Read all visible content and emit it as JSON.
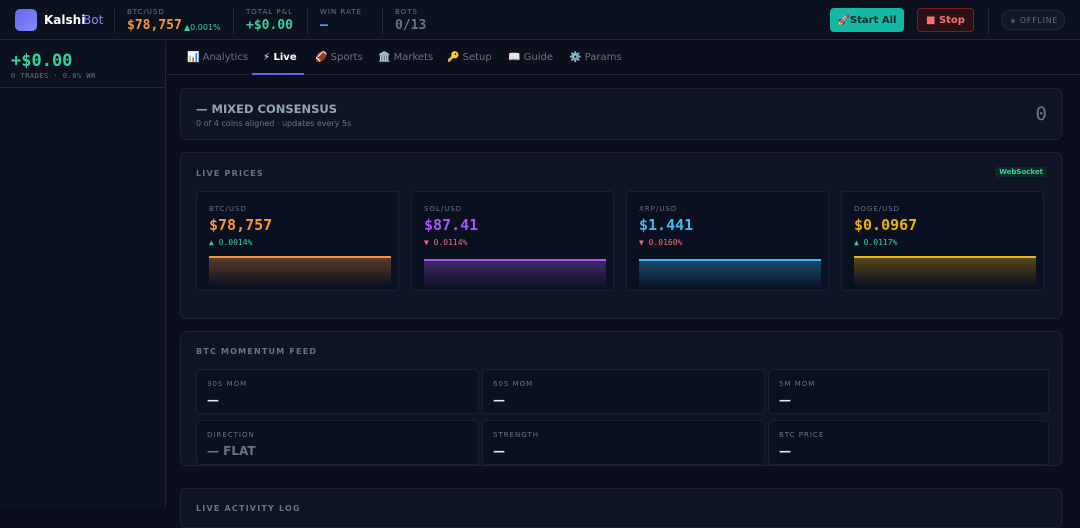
{
  "header": {
    "brand": "Kalshi",
    "brand_suffix": "Bot",
    "stats": [
      {
        "label": "BTC/USD",
        "value": "$78,757",
        "change": "▲0.001%"
      },
      {
        "label": "TOTAL P&L",
        "value": "+$0.00"
      },
      {
        "label": "WIN RATE",
        "value": "—"
      },
      {
        "label": "BOTS",
        "value": "0/13"
      }
    ],
    "start_button": "🚀Start All",
    "stop_button": "■ Stop",
    "status": "OFFLINE"
  },
  "sidebar": {
    "pnl": "+$0.00",
    "summary": "0 TRADES · 0.0% WR"
  },
  "tabs": [
    "📊 Analytics",
    "⚡ Live",
    "🏈 Sports",
    "🏛️ Markets",
    "🔑 Setup",
    "📖 Guide",
    "⚙️ Params"
  ],
  "consensus": {
    "title": "— MIXED CONSENSUS",
    "subtitle": "0 of 4 coins aligned · updates every 5s",
    "score": "0"
  },
  "live_prices": {
    "title": "LIVE PRICES",
    "badge": "WebSocket",
    "coins": [
      {
        "pair": "BTC/USD",
        "price": "$78,757",
        "change": "▲ 0.0014%"
      },
      {
        "pair": "SOL/USD",
        "price": "$87.41",
        "change": "▼ 0.0114%"
      },
      {
        "pair": "XRP/USD",
        "price": "$1.441",
        "change": "▼ 0.0160%"
      },
      {
        "pair": "DOGE/USD",
        "price": "$0.0967",
        "change": "▲ 0.0117%"
      }
    ]
  },
  "momentum": {
    "title": "BTC MOMENTUM FEED",
    "cells": [
      {
        "label": "30S MOM",
        "value": "—"
      },
      {
        "label": "60S MOM",
        "value": "—"
      },
      {
        "label": "5M MOM",
        "value": "—"
      },
      {
        "label": "DIRECTION",
        "value": "— FLAT"
      },
      {
        "label": "STRENGTH",
        "value": "—"
      },
      {
        "label": "BTC PRICE",
        "value": "—"
      }
    ]
  },
  "activity_log": {
    "title": "LIVE ACTIVITY LOG"
  }
}
